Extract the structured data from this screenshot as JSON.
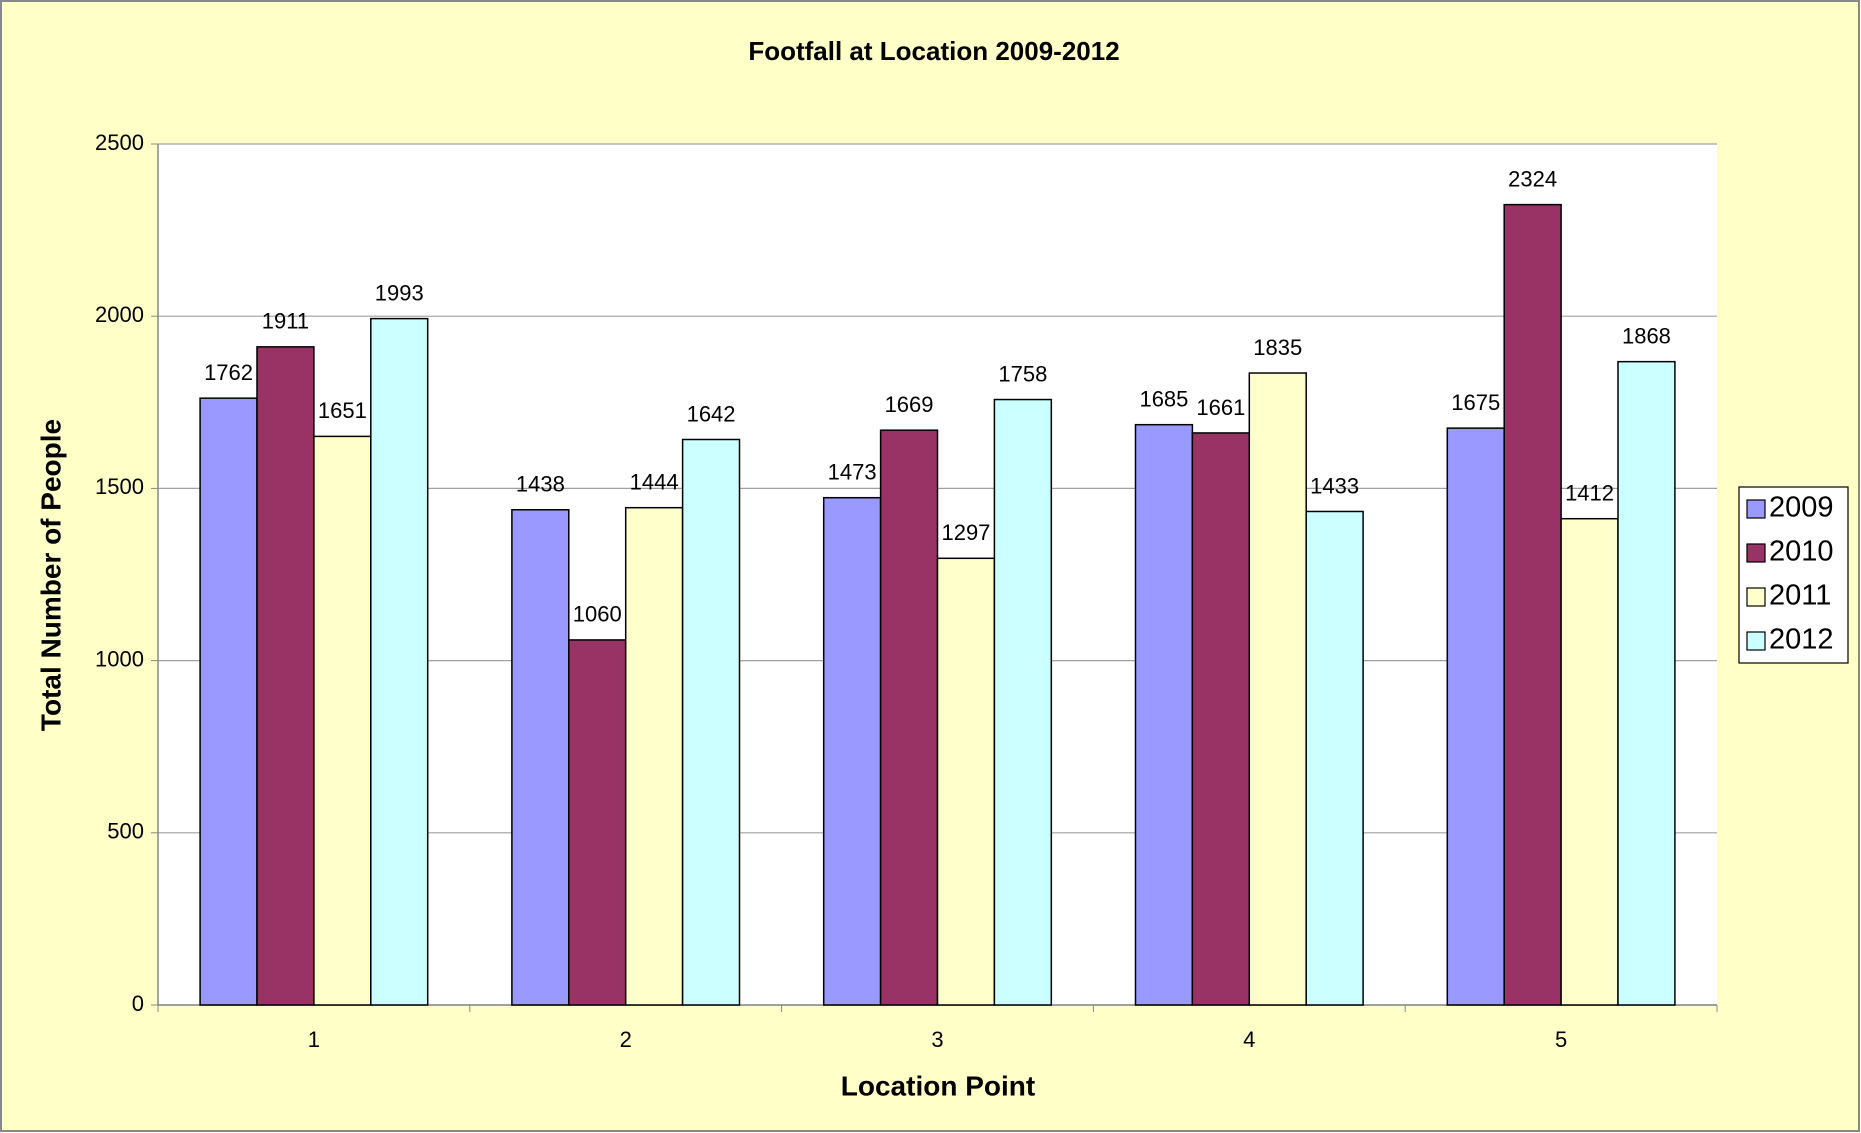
{
  "chart_data": {
    "type": "bar",
    "title": "Footfall at Location 2009-2012",
    "xlabel": "Location Point",
    "ylabel": "Total Number of People",
    "categories": [
      "1",
      "2",
      "3",
      "4",
      "5"
    ],
    "series": [
      {
        "name": "2009",
        "color": "#9999ff",
        "values": [
          1762,
          1438,
          1473,
          1685,
          1675
        ]
      },
      {
        "name": "2010",
        "color": "#993366",
        "values": [
          1911,
          1060,
          1669,
          1661,
          2324
        ]
      },
      {
        "name": "2011",
        "color": "#ffffcc",
        "values": [
          1651,
          1444,
          1297,
          1835,
          1412
        ]
      },
      {
        "name": "2012",
        "color": "#ccffff",
        "values": [
          1993,
          1642,
          1758,
          1433,
          1868
        ]
      }
    ],
    "ylim": [
      0,
      2500
    ],
    "yticks": [
      0,
      500,
      1000,
      1500,
      2000,
      2500
    ],
    "grid": true,
    "legend": "right"
  }
}
